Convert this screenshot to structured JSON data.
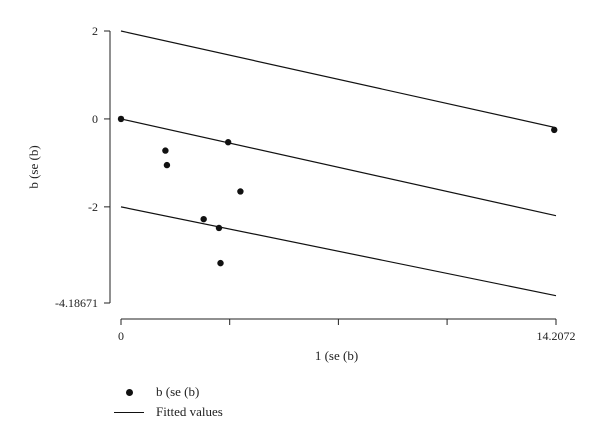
{
  "chart_data": {
    "type": "scatter",
    "title": "",
    "xlabel": "1 (se (b)",
    "ylabel": "b (se (b)",
    "xlim": [
      0,
      14.2072
    ],
    "ylim": [
      -4.18671,
      2
    ],
    "x_tick_values": [
      0,
      3.55,
      7.1,
      10.65,
      14.2072
    ],
    "x_tick_labels": [
      "0",
      "",
      "",
      "",
      "14.2072"
    ],
    "y_tick_values": [
      2,
      0,
      -2,
      -4.18671
    ],
    "y_tick_labels": [
      "2",
      "0",
      "-2",
      "-4.18671"
    ],
    "series": [
      {
        "name": "b (se (b)",
        "kind": "scatter",
        "color": "#111111",
        "x": [
          0.0,
          1.45,
          1.5,
          3.5,
          2.7,
          3.2,
          3.25,
          3.9,
          14.15
        ],
        "y": [
          0.0,
          -0.72,
          -1.05,
          -0.53,
          -2.28,
          -2.48,
          -3.28,
          -1.65,
          -0.25
        ]
      },
      {
        "name": "Fitted values",
        "kind": "line",
        "color": "#111111",
        "lines": [
          {
            "x": [
              0,
              14.2072
            ],
            "y": [
              2,
              -0.2
            ]
          },
          {
            "x": [
              0,
              14.2072
            ],
            "y": [
              0,
              -2.2
            ]
          },
          {
            "x": [
              0,
              14.2072
            ],
            "y": [
              -2,
              -4.02
            ]
          }
        ]
      }
    ],
    "grid": false,
    "legend_position": "bottom-left"
  }
}
